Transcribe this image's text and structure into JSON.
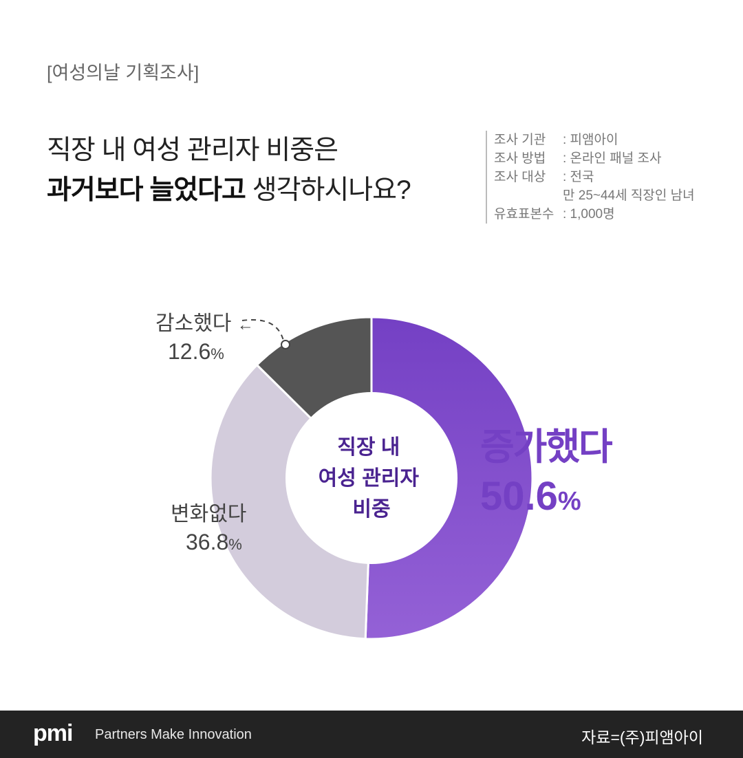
{
  "header": {
    "tag": "[여성의날 기획조사]",
    "question_line1": "직장 내 여성 관리자 비중은",
    "question_line2_bold": "과거보다 늘었다고",
    "question_line2_rest": " 생각하시나요?"
  },
  "survey_info": [
    {
      "key": "조사 기관",
      "value": ": 피앰아이"
    },
    {
      "key": "조사 방법",
      "value": ": 온라인 패널 조사"
    },
    {
      "key": "조사 대상",
      "value": ": 전국"
    },
    {
      "key": "",
      "value": "만 25~44세 직장인 남녀"
    },
    {
      "key": "유효표본수",
      "value": ": 1,000명"
    }
  ],
  "chart_data": {
    "type": "pie",
    "donut": true,
    "center_label": [
      "직장 내",
      "여성 관리자",
      "비중"
    ],
    "categories": [
      "증가했다",
      "변화없다",
      "감소했다"
    ],
    "values": [
      50.6,
      36.8,
      12.6
    ],
    "value_labels": [
      "50.6",
      "36.8",
      "12.6"
    ],
    "unit": "%",
    "colors": [
      "#7b45c9",
      "#d3ccdc",
      "#555555"
    ],
    "start": "top",
    "direction": "clockwise"
  },
  "footer": {
    "logo": "pmi",
    "slogan": "Partners Make Innovation",
    "source": "자료=(주)피앰아이"
  }
}
